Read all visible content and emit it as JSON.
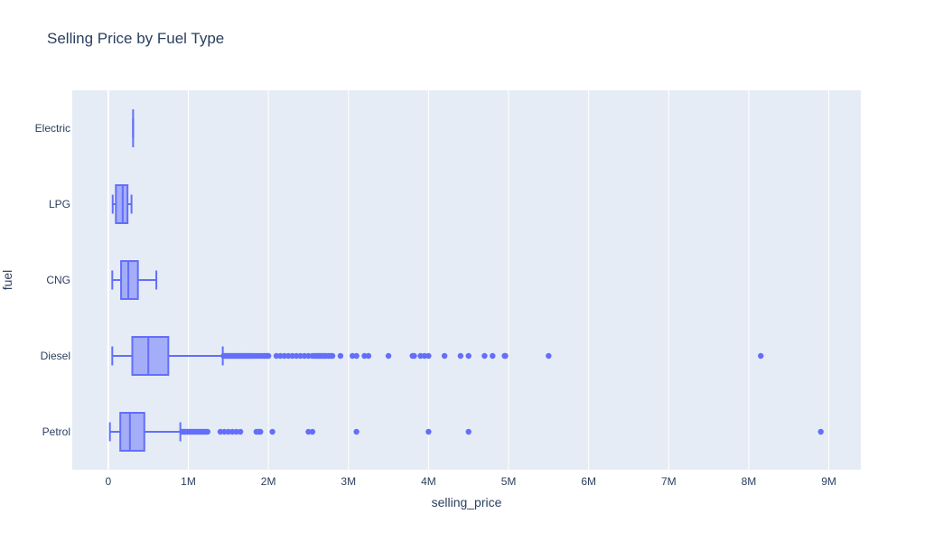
{
  "chart_data": {
    "type": "box",
    "orientation": "horizontal",
    "title": "Selling Price by Fuel Type",
    "xlabel": "selling_price",
    "ylabel": "fuel",
    "xlim": [
      -450000,
      9400000
    ],
    "grid": true,
    "colors": {
      "plot_bg": "#e5ecf6",
      "grid": "#ffffff",
      "box_line": "#636efa",
      "box_fill": "rgba(99,110,250,0.5)",
      "text": "#2a3f5f"
    },
    "x_ticks": [
      {
        "value": 0,
        "label": "0"
      },
      {
        "value": 1000000,
        "label": "1M"
      },
      {
        "value": 2000000,
        "label": "2M"
      },
      {
        "value": 3000000,
        "label": "3M"
      },
      {
        "value": 4000000,
        "label": "4M"
      },
      {
        "value": 5000000,
        "label": "5M"
      },
      {
        "value": 6000000,
        "label": "6M"
      },
      {
        "value": 7000000,
        "label": "7M"
      },
      {
        "value": 8000000,
        "label": "8M"
      },
      {
        "value": 9000000,
        "label": "9M"
      }
    ],
    "categories": [
      "Electric",
      "LPG",
      "CNG",
      "Diesel",
      "Petrol"
    ],
    "boxes": [
      {
        "category": "Electric",
        "min": 310000,
        "q1": 310000,
        "median": 310000,
        "q3": 310000,
        "max": 310000,
        "outliers": []
      },
      {
        "category": "LPG",
        "min": 55000,
        "q1": 95000,
        "median": 180000,
        "q3": 240000,
        "max": 290000,
        "outliers": []
      },
      {
        "category": "CNG",
        "min": 50000,
        "q1": 160000,
        "median": 250000,
        "q3": 370000,
        "max": 600000,
        "outliers": []
      },
      {
        "category": "Diesel",
        "min": 50000,
        "q1": 300000,
        "median": 500000,
        "q3": 750000,
        "max": 1430000,
        "outliers": [
          1440000,
          1460000,
          1480000,
          1500000,
          1520000,
          1540000,
          1560000,
          1580000,
          1600000,
          1620000,
          1640000,
          1660000,
          1680000,
          1700000,
          1720000,
          1740000,
          1760000,
          1780000,
          1800000,
          1830000,
          1860000,
          1890000,
          1920000,
          1950000,
          1980000,
          2000000,
          2100000,
          2150000,
          2200000,
          2250000,
          2300000,
          2350000,
          2400000,
          2450000,
          2500000,
          2550000,
          2580000,
          2600000,
          2620000,
          2640000,
          2660000,
          2680000,
          2700000,
          2720000,
          2750000,
          2780000,
          2800000,
          2900000,
          3050000,
          3100000,
          3200000,
          3250000,
          3500000,
          3800000,
          3820000,
          3900000,
          3950000,
          4000000,
          4200000,
          4400000,
          4500000,
          4700000,
          4800000,
          4950000,
          4960000,
          5500000,
          8150000
        ]
      },
      {
        "category": "Petrol",
        "min": 20000,
        "q1": 150000,
        "median": 270000,
        "q3": 450000,
        "max": 900000,
        "outliers": [
          920000,
          940000,
          960000,
          980000,
          1000000,
          1020000,
          1040000,
          1060000,
          1080000,
          1100000,
          1120000,
          1140000,
          1160000,
          1180000,
          1200000,
          1220000,
          1240000,
          1400000,
          1450000,
          1500000,
          1550000,
          1600000,
          1650000,
          1850000,
          1880000,
          1900000,
          2050000,
          2500000,
          2550000,
          3100000,
          4000000,
          4500000,
          8900000
        ]
      }
    ]
  }
}
